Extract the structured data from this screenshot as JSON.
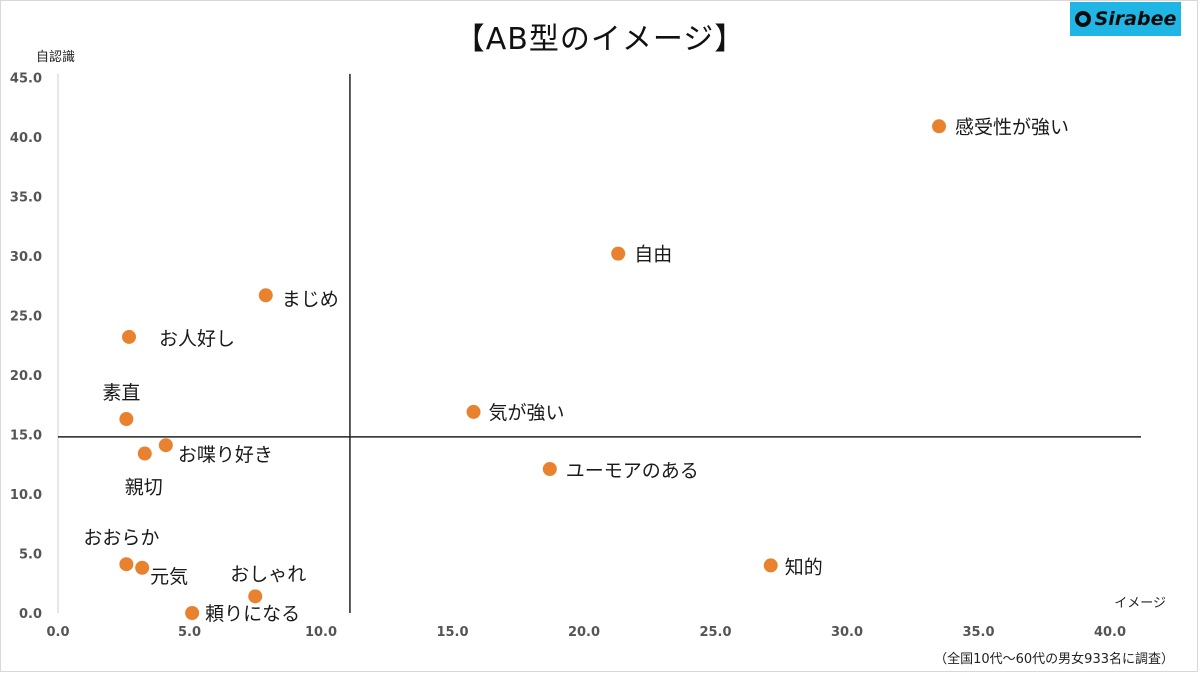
{
  "title": "【AB型のイメージ】",
  "brand": "Sirabee",
  "note": "（全国10代〜60代の男女933名に調査）",
  "colors": {
    "point": "#e8822e",
    "axis": "#222222",
    "logo_bg": "#1fb6e6"
  },
  "chart_data": {
    "type": "scatter",
    "title": "【AB型のイメージ】",
    "xlabel": "イメージ",
    "ylabel": "自認識",
    "xlim": [
      0,
      42
    ],
    "ylim": [
      0,
      45
    ],
    "x_ticks": [
      "0.0",
      "5.0",
      "10.0",
      "15.0",
      "20.0",
      "25.0",
      "30.0",
      "35.0",
      "40.0"
    ],
    "y_ticks": [
      "0.0",
      "5.0",
      "10.0",
      "15.0",
      "20.0",
      "25.0",
      "30.0",
      "35.0",
      "40.0",
      "45.0"
    ],
    "reference_lines": {
      "x": 11.1,
      "y": 14.8
    },
    "grid": false,
    "points": [
      {
        "label": "感受性が強い",
        "x": 33.5,
        "y": 40.9
      },
      {
        "label": "自由",
        "x": 21.3,
        "y": 30.2
      },
      {
        "label": "まじめ",
        "x": 7.9,
        "y": 26.7
      },
      {
        "label": "お人好し",
        "x": 2.7,
        "y": 23.2
      },
      {
        "label": "素直",
        "x": 2.6,
        "y": 16.3
      },
      {
        "label": "気が強い",
        "x": 15.8,
        "y": 16.9
      },
      {
        "label": "お喋り好き",
        "x": 4.1,
        "y": 14.1
      },
      {
        "label": "親切",
        "x": 3.3,
        "y": 13.4
      },
      {
        "label": "ユーモアのある",
        "x": 18.7,
        "y": 12.1
      },
      {
        "label": "知的",
        "x": 27.1,
        "y": 4.0
      },
      {
        "label": "おおらか",
        "x": 2.6,
        "y": 4.1
      },
      {
        "label": "元気",
        "x": 3.2,
        "y": 3.8
      },
      {
        "label": "おしゃれ",
        "x": 7.5,
        "y": 1.4
      },
      {
        "label": "頼りになる",
        "x": 5.1,
        "y": 0.0
      }
    ]
  }
}
